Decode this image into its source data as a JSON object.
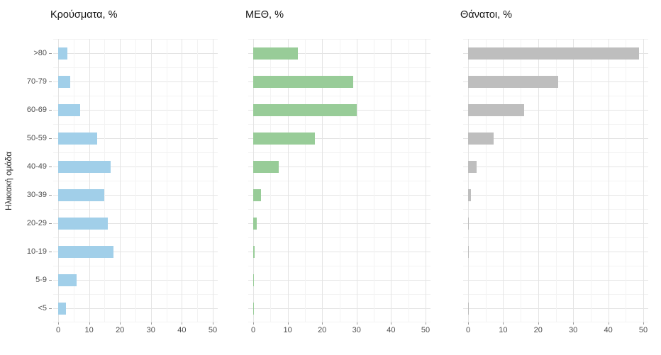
{
  "chart_data": {
    "type": "bar",
    "orientation": "horizontal",
    "ylabel": "Ηλικιακή ομάδα",
    "categories_top_to_bottom": [
      ">80",
      "70-79",
      "60-69",
      "50-59",
      "40-49",
      "30-39",
      "20-29",
      "10-19",
      "5-9",
      "<5"
    ],
    "x_ticks": [
      0,
      10,
      20,
      30,
      40,
      50
    ],
    "xlim": [
      0,
      52
    ],
    "grid": true,
    "minor_grid_step": 5,
    "panels": [
      {
        "title": "Κρούσματα, %",
        "color": "#a1cfe9",
        "values": [
          3,
          4,
          7,
          12.5,
          17,
          15,
          16,
          18,
          6,
          2.5
        ]
      },
      {
        "title": "ΜΕΘ, %",
        "color": "#98cc98",
        "values": [
          13,
          29,
          30,
          18,
          7.5,
          2.3,
          1,
          0.4,
          0.2,
          0.2
        ]
      },
      {
        "title": "Θάνατοι, %",
        "color": "#bebebe",
        "values": [
          48.7,
          25.7,
          16,
          7.3,
          2.5,
          0.8,
          0.1,
          0.1,
          0,
          0.1
        ]
      }
    ]
  }
}
